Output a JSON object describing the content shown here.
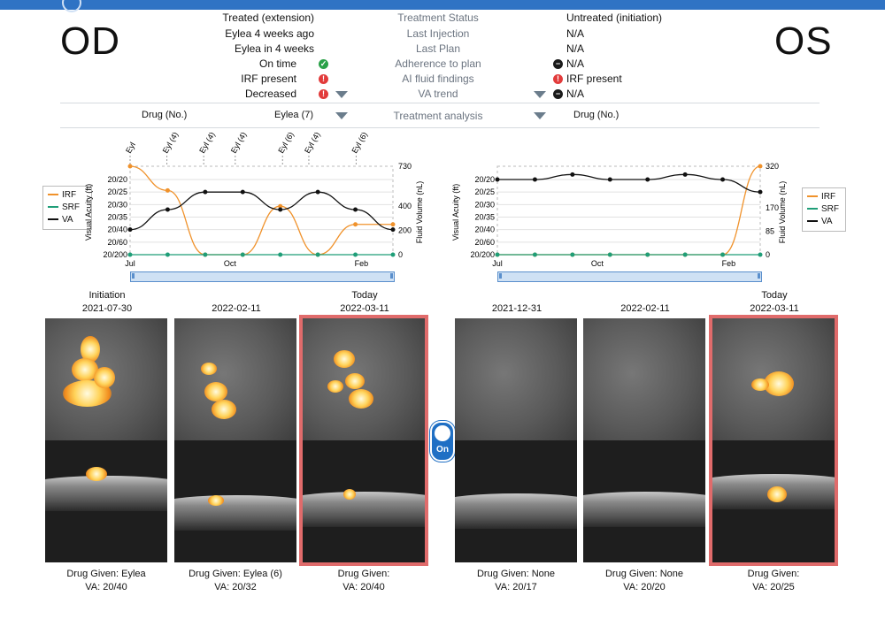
{
  "header": {
    "od": "OD",
    "os": "OS"
  },
  "summary": {
    "rows": [
      {
        "od": "Treated (extension)",
        "label": "Treatment Status",
        "os": "Untreated (initiation)",
        "od_icon": "",
        "os_icon": ""
      },
      {
        "od": "Eylea 4 weeks ago",
        "label": "Last Injection",
        "os": "N/A",
        "od_icon": "",
        "os_icon": ""
      },
      {
        "od": "Eylea in 4 weeks",
        "label": "Last Plan",
        "os": "N/A",
        "od_icon": "",
        "os_icon": ""
      },
      {
        "od": "On time",
        "label": "Adherence to plan",
        "os": "N/A",
        "od_icon": "check-icon",
        "os_icon": "minus-icon"
      },
      {
        "od": "IRF present",
        "label": "AI fluid findings",
        "os": "IRF present",
        "od_icon": "alert-icon",
        "os_icon": "alert-icon"
      },
      {
        "od": "Decreased",
        "label": "VA trend",
        "os": "N/A",
        "od_icon": "alert-icon",
        "os_icon": "minus-icon"
      }
    ],
    "analysis": {
      "od_label": "Drug (No.)",
      "od_value": "Eylea (7)",
      "label": "Treatment analysis",
      "os_label": "Drug (No.)"
    }
  },
  "colors": {
    "irf": "#f0922b",
    "srf": "#1f9e78",
    "va": "#111111",
    "accent": "#1f6fc4",
    "select": "#e06b6b"
  },
  "charts": {
    "legend": [
      "IRF",
      "SRF",
      "VA"
    ],
    "od": {
      "ylabel": "Visual Acuity (ft)",
      "y2label": "Fluid Volume (nL)",
      "va_ticks": [
        "20/20",
        "20/25",
        "20/30",
        "20/35",
        "20/40",
        "20/60",
        "20/200"
      ],
      "vol_ticks": [
        "730",
        "400",
        "200",
        "0"
      ],
      "x_ticks": [
        "Jul",
        "Oct",
        "Feb"
      ],
      "injections": [
        "Eyl",
        "Eyl (4)",
        "Eyl (4)",
        "Eyl (4)",
        "Eyl (6)",
        "Eyl (4)",
        "Eyl (6)"
      ]
    },
    "os": {
      "ylabel": "Visual Acuity (ft)",
      "y2label": "Fluid Volume (nL)",
      "va_ticks": [
        "20/20",
        "20/25",
        "20/30",
        "20/35",
        "20/40",
        "20/60",
        "20/200"
      ],
      "vol_ticks": [
        "320",
        "170",
        "85",
        "0"
      ],
      "x_ticks": [
        "Jul",
        "Oct",
        "Feb"
      ]
    }
  },
  "chart_data": [
    {
      "type": "line",
      "eye": "OD",
      "ylabel": "Visual Acuity (ft)",
      "y2label": "Fluid Volume (nL)",
      "series": [
        {
          "name": "VA",
          "values": [
            "20/40",
            "20/32",
            "20/25",
            "20/25",
            "20/32",
            "20/25",
            "20/32",
            "20/40"
          ]
        },
        {
          "name": "IRF",
          "values": [
            730,
            530,
            0,
            0,
            400,
            0,
            250,
            250
          ]
        },
        {
          "name": "SRF",
          "values": [
            0,
            0,
            0,
            0,
            0,
            0,
            0,
            0
          ]
        }
      ]
    },
    {
      "type": "line",
      "eye": "OS",
      "ylabel": "Visual Acuity (ft)",
      "y2label": "Fluid Volume (nL)",
      "series": [
        {
          "name": "VA",
          "values": [
            "20/20",
            "20/20",
            "20/17",
            "20/20",
            "20/20",
            "20/17",
            "20/20",
            "20/25"
          ]
        },
        {
          "name": "IRF",
          "values": [
            0,
            0,
            0,
            0,
            0,
            0,
            0,
            320
          ]
        },
        {
          "name": "SRF",
          "values": [
            0,
            0,
            0,
            0,
            0,
            0,
            0,
            0
          ]
        }
      ]
    }
  ],
  "toggle": "On",
  "scans": {
    "od": [
      {
        "title": "Initiation",
        "date": "2021-07-30",
        "drug": "Drug Given: Eylea",
        "va": "VA: 20/40"
      },
      {
        "title": "",
        "date": "2022-02-11",
        "drug": "Drug Given: Eylea (6)",
        "va": "VA: 20/32"
      },
      {
        "title": "Today",
        "date": "2022-03-11",
        "drug": "Drug Given:",
        "va": "VA: 20/40"
      }
    ],
    "os": [
      {
        "title": "",
        "date": "2021-12-31",
        "drug": "Drug Given: None",
        "va": "VA: 20/17"
      },
      {
        "title": "",
        "date": "2022-02-11",
        "drug": "Drug Given: None",
        "va": "VA: 20/20"
      },
      {
        "title": "Today",
        "date": "2022-03-11",
        "drug": "Drug Given:",
        "va": "VA: 20/25"
      }
    ]
  }
}
